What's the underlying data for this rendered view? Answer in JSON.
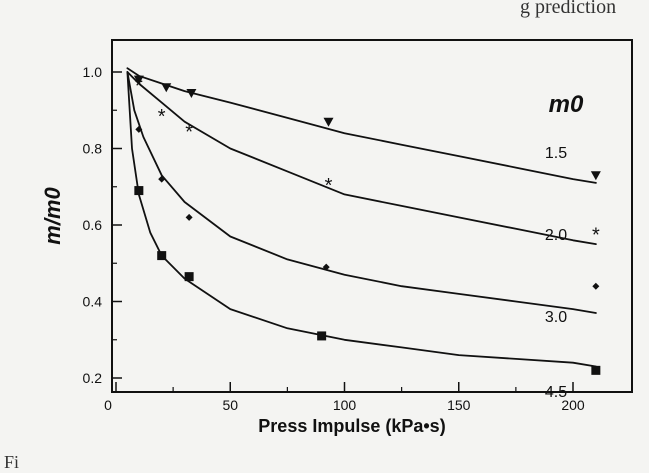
{
  "page": {
    "top_fragment": "g    prediction",
    "figure_fragment": "Fi"
  },
  "chart_data": {
    "type": "line",
    "xlabel": "Press Impulse (kPa•s)",
    "ylabel": "m/m0",
    "legend_title": "m0",
    "xlim": [
      0,
      215
    ],
    "ylim": [
      0.2,
      1.08
    ],
    "xticks": [
      0,
      50,
      100,
      150,
      200
    ],
    "yticks": [
      0.2,
      0.4,
      0.6,
      0.8,
      1.0
    ],
    "xtick_labels": [
      "0",
      "50",
      "100",
      "150",
      "200"
    ],
    "ytick_labels": [
      "0.2",
      "0.4",
      "0.6",
      "0.8",
      "1.0"
    ],
    "grid": false,
    "series": [
      {
        "name": "1.5",
        "marker": "triangle-down",
        "curve": {
          "x": [
            5,
            10,
            20,
            30,
            50,
            75,
            100,
            125,
            150,
            175,
            200,
            210
          ],
          "y": [
            1.01,
            0.99,
            0.97,
            0.95,
            0.92,
            0.88,
            0.84,
            0.81,
            0.78,
            0.75,
            0.72,
            0.71
          ]
        },
        "points": {
          "x": [
            10,
            22,
            33,
            93,
            210
          ],
          "y": [
            0.98,
            0.96,
            0.945,
            0.87,
            0.73
          ]
        }
      },
      {
        "name": "2.0",
        "marker": "asterisk",
        "curve": {
          "x": [
            5,
            10,
            20,
            30,
            50,
            75,
            100,
            125,
            150,
            175,
            200,
            210
          ],
          "y": [
            1.0,
            0.97,
            0.92,
            0.87,
            0.8,
            0.74,
            0.68,
            0.65,
            0.62,
            0.59,
            0.56,
            0.55
          ]
        },
        "points": {
          "x": [
            10,
            20,
            32,
            93,
            210
          ],
          "y": [
            0.97,
            0.89,
            0.85,
            0.71,
            0.58
          ]
        }
      },
      {
        "name": "3.0",
        "marker": "diamond",
        "curve": {
          "x": [
            5,
            8,
            12,
            20,
            30,
            50,
            75,
            100,
            125,
            150,
            175,
            200,
            210
          ],
          "y": [
            1.0,
            0.9,
            0.83,
            0.73,
            0.66,
            0.57,
            0.51,
            0.47,
            0.44,
            0.42,
            0.4,
            0.38,
            0.37
          ]
        },
        "points": {
          "x": [
            10,
            20,
            32,
            92,
            210
          ],
          "y": [
            0.85,
            0.72,
            0.62,
            0.49,
            0.44
          ]
        }
      },
      {
        "name": "4.5",
        "marker": "square",
        "curve": {
          "x": [
            5,
            7,
            10,
            15,
            20,
            30,
            50,
            75,
            100,
            125,
            150,
            175,
            200,
            210
          ],
          "y": [
            1.0,
            0.8,
            0.68,
            0.58,
            0.52,
            0.46,
            0.38,
            0.33,
            0.3,
            0.28,
            0.26,
            0.25,
            0.24,
            0.23
          ]
        },
        "points": {
          "x": [
            10,
            20,
            32,
            90,
            210
          ],
          "y": [
            0.69,
            0.52,
            0.465,
            0.31,
            0.22
          ]
        }
      }
    ]
  }
}
